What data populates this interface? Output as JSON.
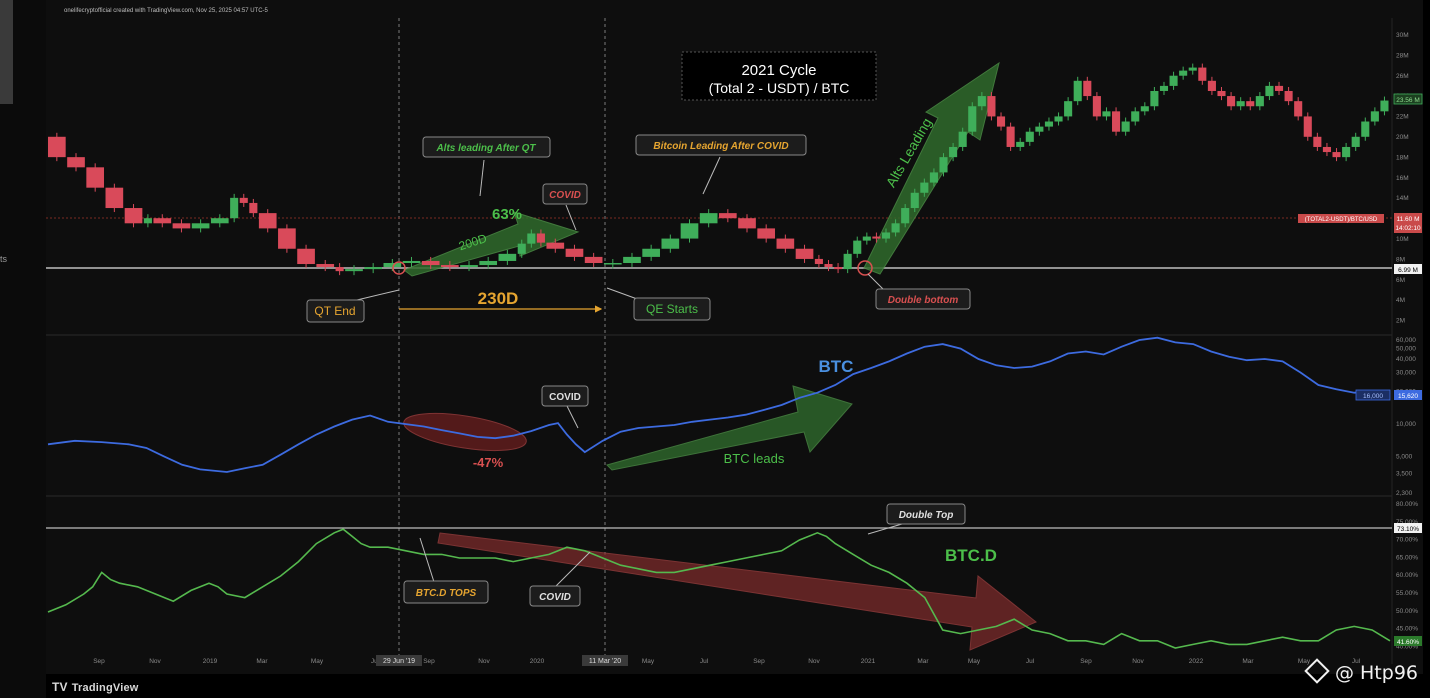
{
  "header_note": "onelifecryptofficial created with TradingView.com, Nov 25, 2025 04:57 UTC-5",
  "left_label": "ts",
  "footer": {
    "brand": "TradingView",
    "watermark": "@ Htp96"
  },
  "chart_data": [
    {
      "type": "line",
      "title": "2021 Cycle",
      "subtitle": "(Total 2 - USDT) / BTC",
      "y_ticks": [
        "30M",
        "28M",
        "26M",
        "24M",
        "22M",
        "20M",
        "18M",
        "16M",
        "14M",
        "12M",
        "10M",
        "8M",
        "6M",
        "4M",
        "2M"
      ],
      "value_tags": [
        "23.56 M",
        "11.60 M",
        "14:02:10",
        "6.99 M"
      ],
      "resistance_tag": "(TOTAL2-USDT)/BTC/USD",
      "series": [
        {
          "values": [
            [
              0,
              20
            ],
            [
              2,
              18
            ],
            [
              4,
              17
            ],
            [
              6,
              15
            ],
            [
              8,
              13
            ],
            [
              10,
              11.5
            ],
            [
              11,
              12
            ],
            [
              13,
              11.5
            ],
            [
              15,
              11
            ],
            [
              17,
              11.5
            ],
            [
              19,
              12
            ],
            [
              20,
              14
            ],
            [
              21,
              13.5
            ],
            [
              22,
              12.5
            ],
            [
              24,
              11
            ],
            [
              26,
              9
            ],
            [
              28,
              7.5
            ],
            [
              30,
              7.2
            ],
            [
              31,
              6.8
            ],
            [
              33,
              7
            ],
            [
              35,
              7.2
            ],
            [
              37,
              7.6
            ],
            [
              39,
              7.8
            ],
            [
              41,
              7.4
            ],
            [
              43,
              7.2
            ],
            [
              45,
              7.4
            ],
            [
              47,
              7.8
            ],
            [
              49,
              8.5
            ],
            [
              50,
              9.5
            ],
            [
              51,
              10.5
            ],
            [
              52,
              9.6
            ],
            [
              54,
              9
            ],
            [
              56,
              8.2
            ],
            [
              58,
              7.6
            ],
            [
              60,
              7.6
            ],
            [
              62,
              8.2
            ],
            [
              64,
              9
            ],
            [
              66,
              10
            ],
            [
              68,
              11.5
            ],
            [
              70,
              12.5
            ],
            [
              72,
              12
            ],
            [
              74,
              11
            ],
            [
              76,
              10
            ],
            [
              78,
              9
            ],
            [
              80,
              8
            ],
            [
              81,
              7.5
            ],
            [
              82,
              7.2
            ],
            [
              83,
              7
            ],
            [
              84,
              8.5
            ],
            [
              85,
              9.8
            ],
            [
              86,
              10.2
            ],
            [
              87,
              10
            ],
            [
              88,
              10.6
            ],
            [
              89,
              11.5
            ],
            [
              90,
              13
            ],
            [
              91,
              14.5
            ],
            [
              92,
              15.5
            ],
            [
              93,
              16.5
            ],
            [
              94,
              18
            ],
            [
              95,
              19
            ],
            [
              96,
              20.5
            ],
            [
              97,
              23
            ],
            [
              98,
              24
            ],
            [
              99,
              22
            ],
            [
              100,
              21
            ],
            [
              101,
              19
            ],
            [
              102,
              19.5
            ],
            [
              103,
              20.5
            ],
            [
              104,
              21
            ],
            [
              105,
              21.5
            ],
            [
              106,
              22
            ],
            [
              107,
              23.5
            ],
            [
              108,
              25.5
            ],
            [
              109,
              24
            ],
            [
              110,
              22
            ],
            [
              111,
              22.5
            ],
            [
              112,
              20.5
            ],
            [
              113,
              21.5
            ],
            [
              114,
              22.5
            ],
            [
              115,
              23
            ],
            [
              116,
              24.5
            ],
            [
              117,
              25
            ],
            [
              118,
              26
            ],
            [
              119,
              26.5
            ],
            [
              120,
              26.8
            ],
            [
              121,
              25.5
            ],
            [
              122,
              24.5
            ],
            [
              123,
              24
            ],
            [
              124,
              23
            ],
            [
              125,
              23.5
            ],
            [
              126,
              23
            ],
            [
              127,
              24
            ],
            [
              128,
              25
            ],
            [
              129,
              24.5
            ],
            [
              130,
              23.5
            ],
            [
              131,
              22
            ],
            [
              132,
              20
            ],
            [
              133,
              19
            ],
            [
              134,
              18.5
            ],
            [
              135,
              18
            ],
            [
              136,
              19
            ],
            [
              137,
              20
            ],
            [
              138,
              21.5
            ],
            [
              139,
              22.5
            ],
            [
              140,
              23.56
            ]
          ]
        }
      ]
    },
    {
      "type": "line",
      "series_label": "BTC",
      "y_ticks": [
        "60,000",
        "50,000",
        "40,000",
        "30,000",
        "20,000",
        "10,000",
        "5,000",
        "3,500",
        "2,300"
      ],
      "value_tags": [
        "16,000",
        "15,620"
      ],
      "series": [
        {
          "values": [
            [
              0,
              6500
            ],
            [
              3,
              7000
            ],
            [
              6,
              6800
            ],
            [
              9,
              6500
            ],
            [
              11,
              6000
            ],
            [
              13,
              5000
            ],
            [
              15,
              4200
            ],
            [
              17,
              3800
            ],
            [
              20,
              3600
            ],
            [
              22,
              3900
            ],
            [
              24,
              4200
            ],
            [
              26,
              5200
            ],
            [
              28,
              6500
            ],
            [
              30,
              8000
            ],
            [
              32,
              9500
            ],
            [
              34,
              11000
            ],
            [
              36,
              12000
            ],
            [
              38,
              10500
            ],
            [
              40,
              10000
            ],
            [
              42,
              9500
            ],
            [
              44,
              8800
            ],
            [
              46,
              8200
            ],
            [
              48,
              7600
            ],
            [
              50,
              7400
            ],
            [
              52,
              7800
            ],
            [
              54,
              8600
            ],
            [
              56,
              9800
            ],
            [
              57,
              10200
            ],
            [
              58,
              8000
            ],
            [
              59,
              6500
            ],
            [
              60,
              5500
            ],
            [
              62,
              7000
            ],
            [
              64,
              8500
            ],
            [
              66,
              9200
            ],
            [
              68,
              9500
            ],
            [
              70,
              9800
            ],
            [
              72,
              10500
            ],
            [
              74,
              11000
            ],
            [
              76,
              11500
            ],
            [
              78,
              12200
            ],
            [
              80,
              13500
            ],
            [
              82,
              15000
            ],
            [
              84,
              17500
            ],
            [
              86,
              19500
            ],
            [
              88,
              23000
            ],
            [
              90,
              29000
            ],
            [
              92,
              33000
            ],
            [
              94,
              38000
            ],
            [
              96,
              45000
            ],
            [
              98,
              52000
            ],
            [
              100,
              55000
            ],
            [
              102,
              50000
            ],
            [
              104,
              40000
            ],
            [
              106,
              35000
            ],
            [
              108,
              33000
            ],
            [
              110,
              34000
            ],
            [
              112,
              38000
            ],
            [
              114,
              45000
            ],
            [
              116,
              47000
            ],
            [
              118,
              44000
            ],
            [
              120,
              52000
            ],
            [
              122,
              60000
            ],
            [
              124,
              63000
            ],
            [
              126,
              57000
            ],
            [
              128,
              55000
            ],
            [
              130,
              47000
            ],
            [
              132,
              42000
            ],
            [
              134,
              39000
            ],
            [
              136,
              40000
            ],
            [
              138,
              38000
            ],
            [
              140,
              30000
            ],
            [
              142,
              23000
            ],
            [
              144,
              21000
            ],
            [
              146,
              19500
            ],
            [
              148,
              20000
            ],
            [
              150,
              19000
            ]
          ]
        }
      ]
    },
    {
      "type": "line",
      "series_label": "BTC.D",
      "y_ticks": [
        "80.00%",
        "75.00%",
        "70.00%",
        "65.00%",
        "60.00%",
        "55.00%",
        "50.00%",
        "45.00%",
        "40.00%"
      ],
      "value_tags": [
        "73.10%",
        "41.60%"
      ],
      "x_ticks": [
        "Sep",
        "Nov",
        "2019",
        "Mar",
        "May",
        "Jul",
        "Sep",
        "Nov",
        "2020",
        "May",
        "Jul",
        "Sep",
        "Nov",
        "2021",
        "Mar",
        "May",
        "Jul",
        "Sep",
        "Nov",
        "2022",
        "Mar",
        "May",
        "Jul"
      ],
      "date_tags": [
        "29 Jun '19",
        "11 Mar '20"
      ],
      "series": [
        {
          "values": [
            [
              0,
              50
            ],
            [
              2,
              52
            ],
            [
              4,
              55
            ],
            [
              5,
              57
            ],
            [
              6,
              61
            ],
            [
              7,
              59
            ],
            [
              8,
              58
            ],
            [
              10,
              57
            ],
            [
              12,
              55
            ],
            [
              14,
              53
            ],
            [
              16,
              56
            ],
            [
              18,
              58
            ],
            [
              19,
              57
            ],
            [
              20,
              55
            ],
            [
              22,
              54
            ],
            [
              24,
              57
            ],
            [
              26,
              60
            ],
            [
              28,
              64
            ],
            [
              30,
              69
            ],
            [
              32,
              72
            ],
            [
              33,
              73
            ],
            [
              34,
              71
            ],
            [
              35,
              69
            ],
            [
              36,
              68
            ],
            [
              38,
              68
            ],
            [
              40,
              67
            ],
            [
              42,
              66
            ],
            [
              44,
              66
            ],
            [
              46,
              65
            ],
            [
              48,
              65
            ],
            [
              50,
              65
            ],
            [
              52,
              64
            ],
            [
              54,
              65
            ],
            [
              56,
              66
            ],
            [
              58,
              68
            ],
            [
              60,
              67
            ],
            [
              62,
              65
            ],
            [
              64,
              63
            ],
            [
              66,
              62
            ],
            [
              68,
              61
            ],
            [
              70,
              61
            ],
            [
              72,
              62
            ],
            [
              74,
              63
            ],
            [
              76,
              64
            ],
            [
              78,
              65
            ],
            [
              80,
              66
            ],
            [
              82,
              67
            ],
            [
              84,
              70
            ],
            [
              86,
              72
            ],
            [
              87,
              71
            ],
            [
              88,
              69
            ],
            [
              90,
              66
            ],
            [
              92,
              63
            ],
            [
              94,
              61
            ],
            [
              96,
              58
            ],
            [
              98,
              54
            ],
            [
              100,
              45
            ],
            [
              102,
              44
            ],
            [
              104,
              45
            ],
            [
              106,
              46
            ],
            [
              108,
              48
            ],
            [
              110,
              45
            ],
            [
              112,
              44
            ],
            [
              114,
              42
            ],
            [
              116,
              42
            ],
            [
              118,
              41
            ],
            [
              120,
              44
            ],
            [
              122,
              42
            ],
            [
              124,
              42
            ],
            [
              126,
              40
            ],
            [
              128,
              41
            ],
            [
              130,
              42
            ],
            [
              132,
              41
            ],
            [
              134,
              41
            ],
            [
              136,
              42
            ],
            [
              138,
              43
            ],
            [
              140,
              42
            ],
            [
              142,
              42
            ],
            [
              144,
              45
            ],
            [
              146,
              46
            ],
            [
              148,
              45
            ],
            [
              150,
              42
            ]
          ]
        }
      ]
    }
  ],
  "annotations": {
    "alts_after_qt": "Alts leading After QT",
    "btc_after_covid": "Bitcoin Leading After COVID",
    "covid": "COVID",
    "pct_63": "63%",
    "d200": "200D",
    "d230": "230D",
    "qt_end": "QT End",
    "qe_starts": "QE Starts",
    "double_bottom": "Double bottom",
    "alts_leading": "Alts Leading",
    "btc_leads": "BTC leads",
    "pct_neg47": "-47%",
    "double_top": "Double Top",
    "btcd_tops": "BTC.D TOPS"
  },
  "colors": {
    "candles_up": "#3fae5a",
    "candles_down": "#d94a5a",
    "btc_line": "#3d6be0",
    "btcd_line": "#55b94e",
    "green_arrow": "#2f6a2c",
    "red_arrow": "#7a2a2a",
    "orange_text": "#e6a530",
    "green_text": "#4cbf4a",
    "blue_text": "#4a90e0"
  }
}
